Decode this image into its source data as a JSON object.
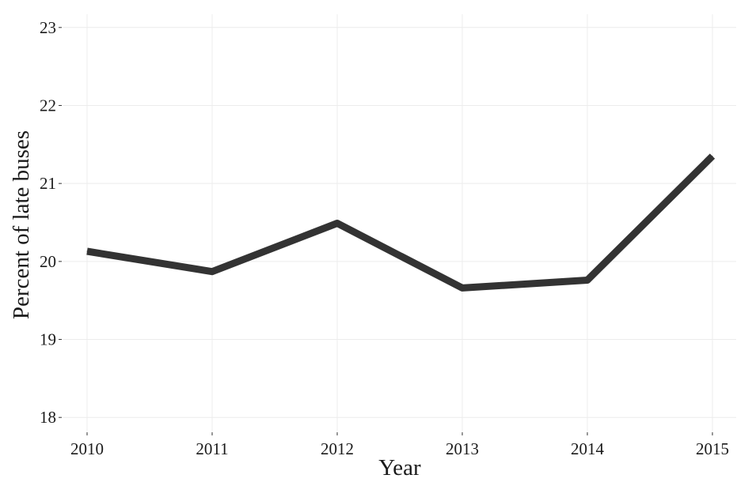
{
  "chart_data": {
    "type": "line",
    "title": "",
    "xlabel": "Year",
    "ylabel": "Percent of late buses",
    "x": [
      2010,
      2011,
      2012,
      2013,
      2014,
      2015
    ],
    "xtick_labels": [
      "2010",
      "2011",
      "2012",
      "2013",
      "2014",
      "2015"
    ],
    "series": [
      {
        "values": [
          20.13,
          19.87,
          20.49,
          19.66,
          19.76,
          21.35
        ]
      }
    ],
    "ylim": [
      17.83,
      23.17
    ],
    "yticks": [
      18,
      19,
      20,
      21,
      22,
      23
    ],
    "ytick_labels": [
      "18",
      "19",
      "20",
      "21",
      "22",
      "23"
    ],
    "grid": true,
    "legend": "none",
    "colors": {
      "line": "#333333",
      "grid": "#ececec",
      "text": "#1a1a1a"
    }
  }
}
